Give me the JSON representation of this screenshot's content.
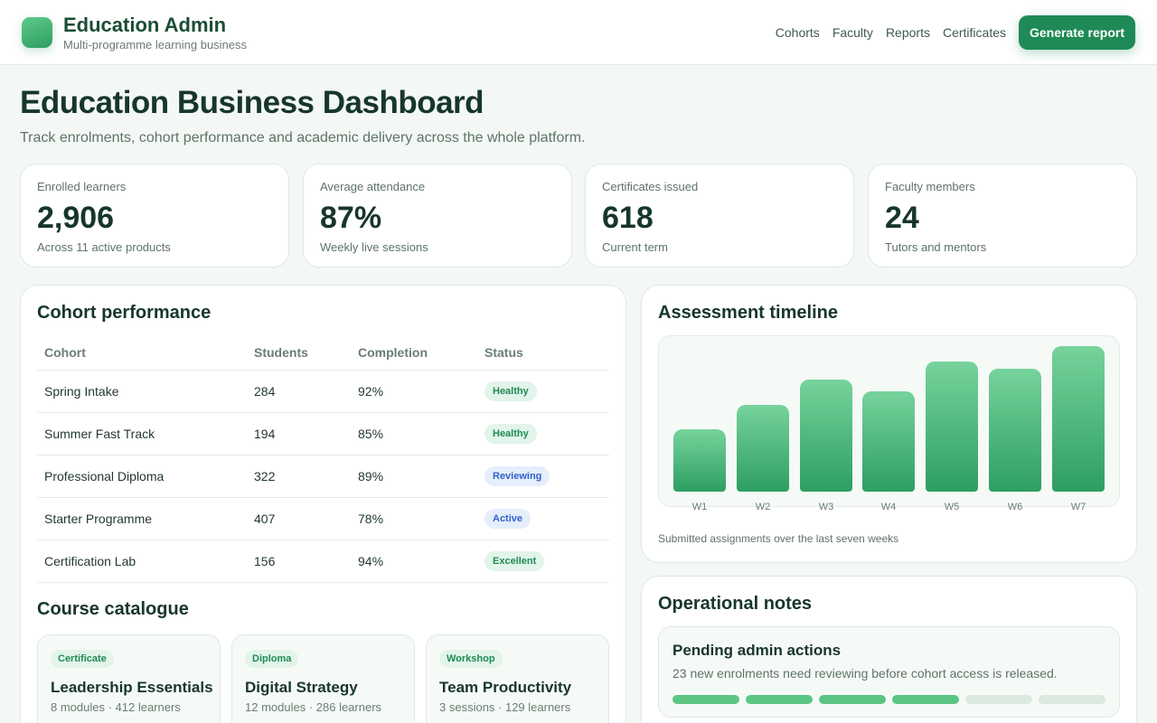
{
  "brand": {
    "title": "Education Admin",
    "subtitle": "Multi-programme learning business",
    "logo_icon": "app-logo-icon"
  },
  "nav": {
    "items": [
      {
        "label": "Cohorts"
      },
      {
        "label": "Faculty"
      },
      {
        "label": "Reports"
      },
      {
        "label": "Certificates"
      }
    ],
    "cta_label": "Generate report"
  },
  "header": {
    "title": "Education Business Dashboard",
    "subtitle": "Track enrolments, cohort performance and academic delivery across the whole platform."
  },
  "stats": [
    {
      "label": "Enrolled learners",
      "value": "2,906",
      "note": "Across 11 active products"
    },
    {
      "label": "Average attendance",
      "value": "87%",
      "note": "Weekly live sessions"
    },
    {
      "label": "Certificates issued",
      "value": "618",
      "note": "Current term"
    },
    {
      "label": "Faculty members",
      "value": "24",
      "note": "Tutors and mentors"
    }
  ],
  "cohorts": {
    "title": "Cohort performance",
    "columns": [
      "Cohort",
      "Students",
      "Completion",
      "Status"
    ],
    "rows": [
      {
        "cohort": "Spring Intake",
        "students": "284",
        "completion": "92%",
        "status": "Healthy",
        "tone": "green"
      },
      {
        "cohort": "Summer Fast Track",
        "students": "194",
        "completion": "85%",
        "status": "Healthy",
        "tone": "green"
      },
      {
        "cohort": "Professional Diploma",
        "students": "322",
        "completion": "89%",
        "status": "Reviewing",
        "tone": "blue"
      },
      {
        "cohort": "Starter Programme",
        "students": "407",
        "completion": "78%",
        "status": "Active",
        "tone": "blue"
      },
      {
        "cohort": "Certification Lab",
        "students": "156",
        "completion": "94%",
        "status": "Excellent",
        "tone": "green"
      }
    ]
  },
  "catalogue": {
    "title": "Course catalogue",
    "courses": [
      {
        "tag": "Certificate",
        "name": "Leadership Essentials",
        "meta": "8 modules · 412 learners"
      },
      {
        "tag": "Diploma",
        "name": "Digital Strategy",
        "meta": "12 modules · 286 learners"
      },
      {
        "tag": "Workshop",
        "name": "Team Productivity",
        "meta": "3 sessions · 129 learners"
      }
    ]
  },
  "timeline": {
    "title": "Assessment timeline",
    "caption": "Submitted assignments over the last seven weeks"
  },
  "chart_data": {
    "type": "bar",
    "categories": [
      "W1",
      "W2",
      "W3",
      "W4",
      "W5",
      "W6",
      "W7"
    ],
    "values": [
      41,
      57,
      74,
      66,
      86,
      81,
      96
    ],
    "ylim": [
      0,
      100
    ],
    "grid": false,
    "color": "#2e9e62"
  },
  "notes": {
    "title": "Operational notes",
    "item_title": "Pending admin actions",
    "item_text": "23 new enrolments need reviewing before cohort access is released.",
    "progress": {
      "completed_steps": 4,
      "total_steps": 6
    }
  }
}
